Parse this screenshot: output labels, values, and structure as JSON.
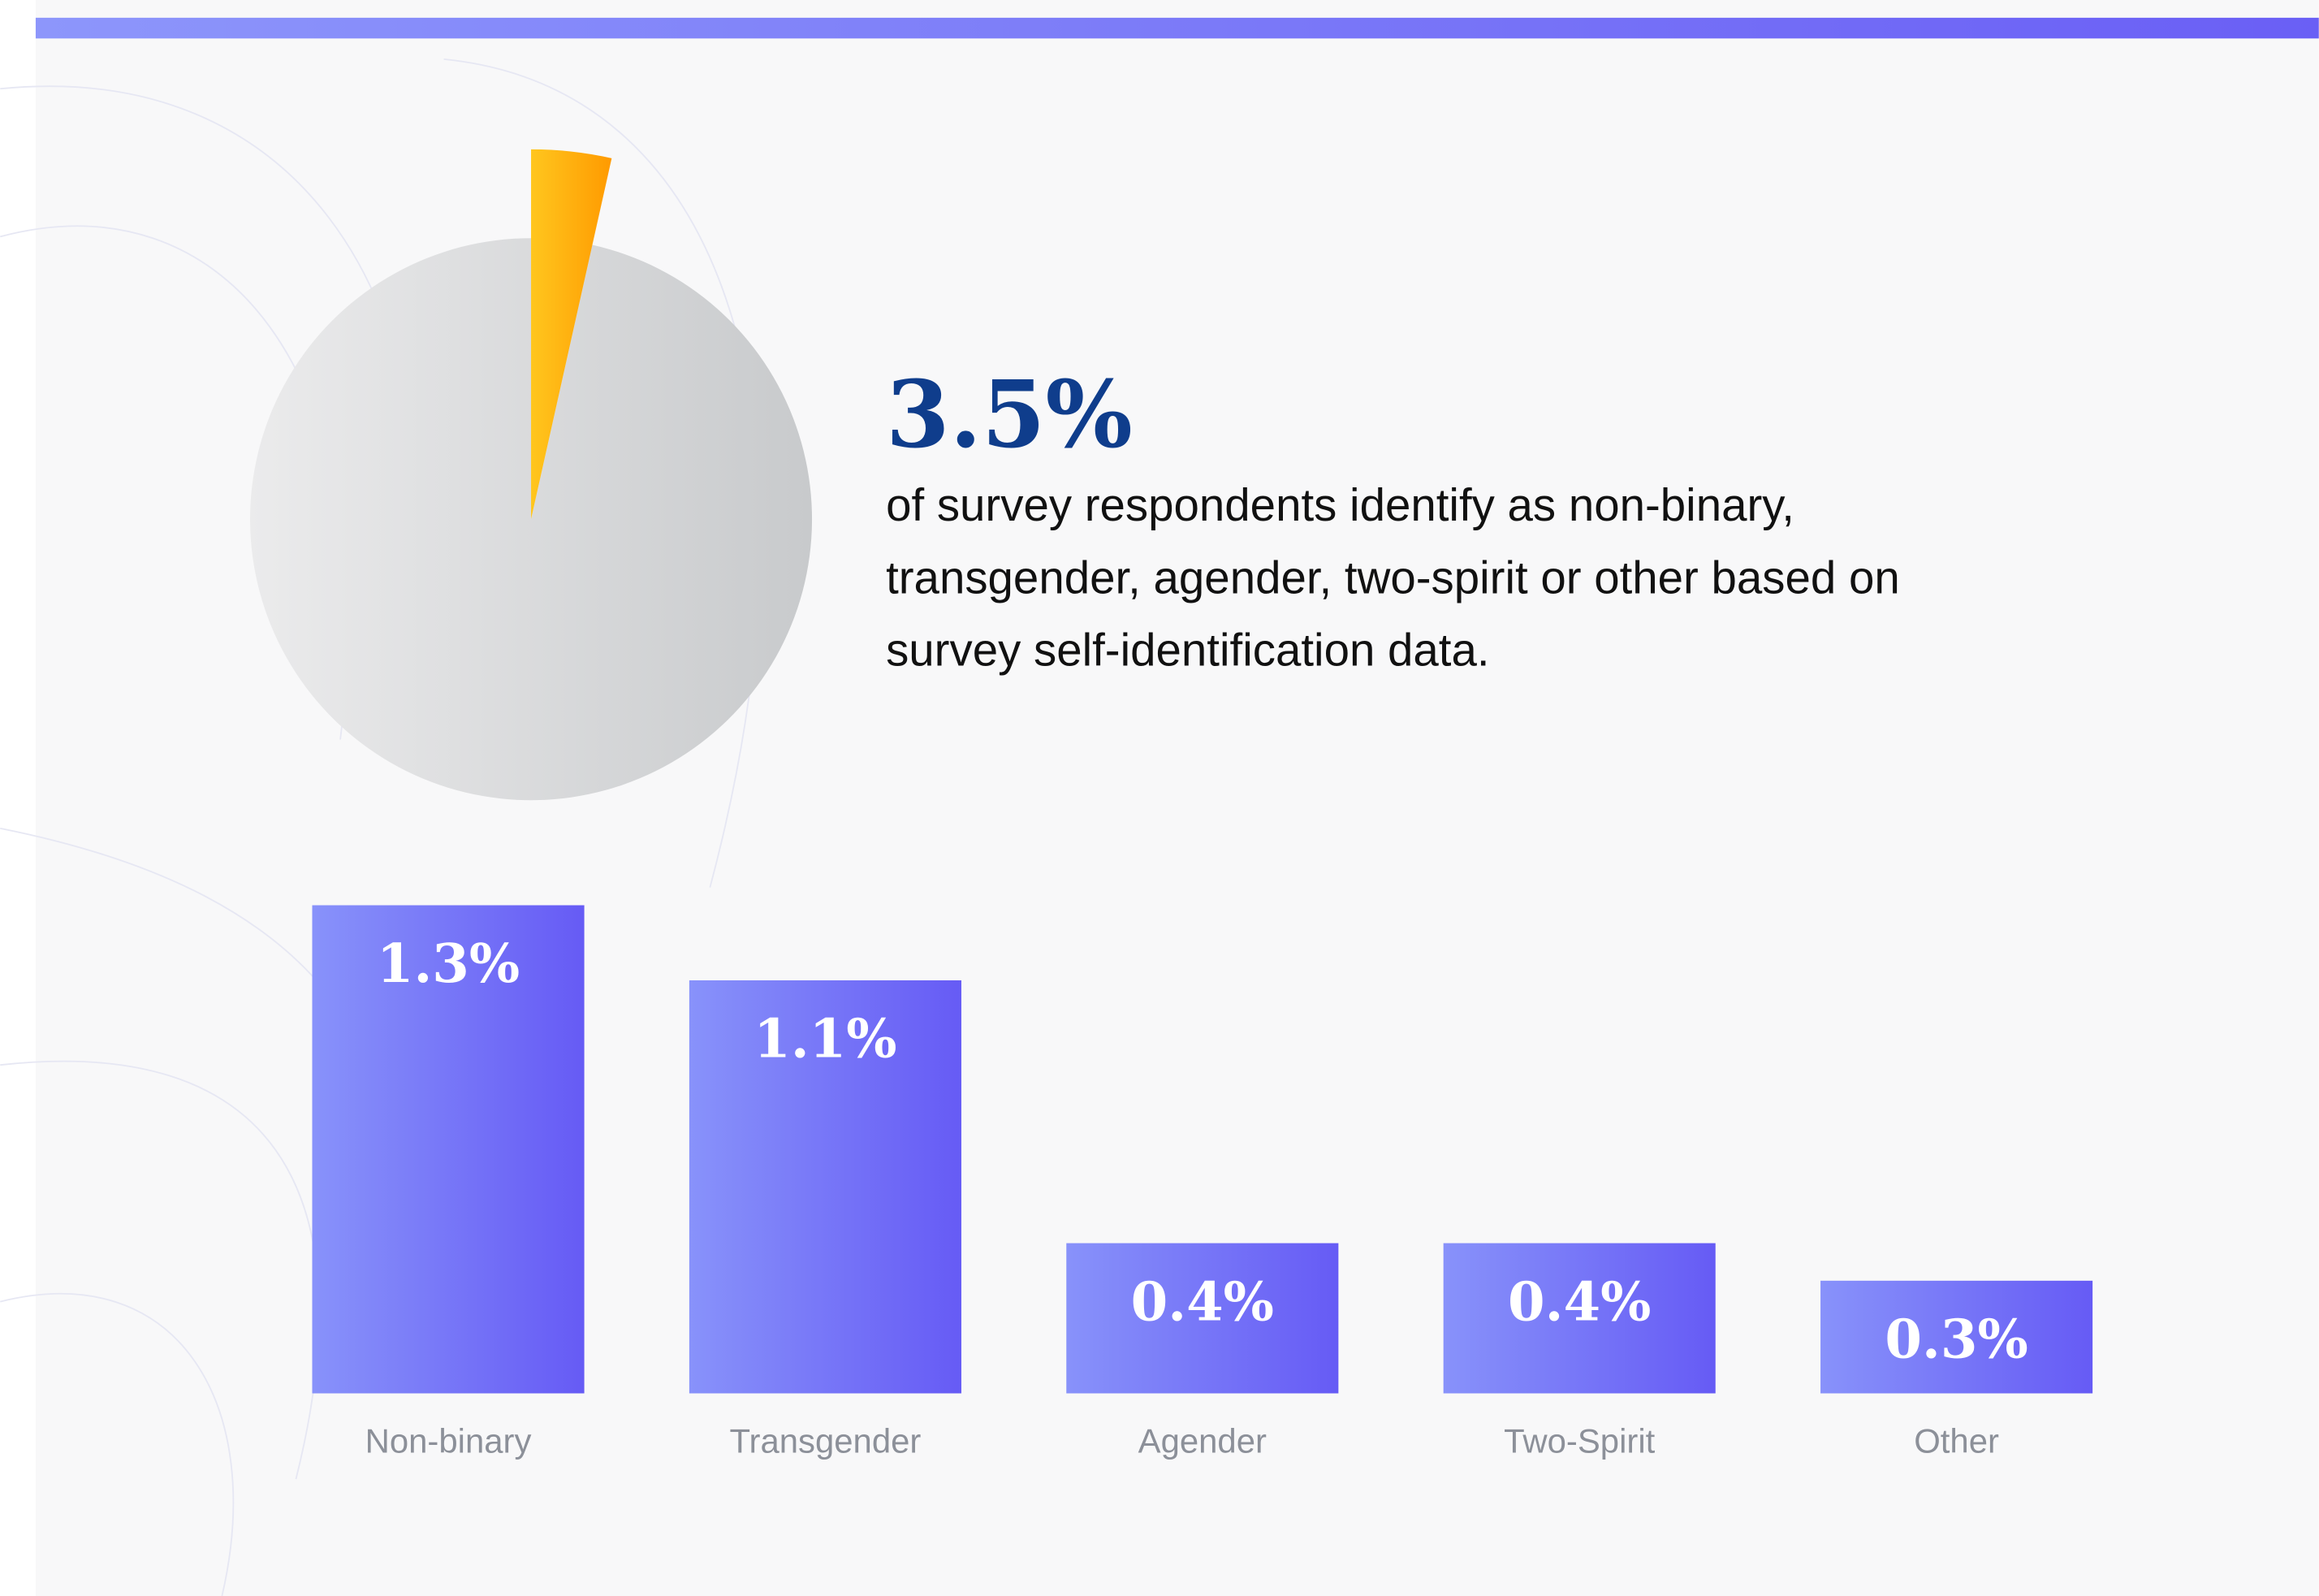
{
  "chart_data": [
    {
      "type": "pie",
      "values": [
        3.5,
        96.5
      ],
      "value_labels": [
        "3.5%",
        null
      ],
      "colors": [
        "#ffb00d",
        "#d8d9db"
      ],
      "annotation": [
        "of survey respondents identify as non-binary,",
        "transgender, agender, two-spirit or other based on",
        "survey self-identification data."
      ]
    },
    {
      "type": "bar",
      "categories": [
        "Non-binary",
        "Transgender",
        "Agender",
        "Two-Spirit",
        "Other"
      ],
      "values": [
        1.3,
        1.1,
        0.4,
        0.4,
        0.3
      ],
      "value_labels": [
        "1.3%",
        "1.1%",
        "0.4%",
        "0.4%",
        "0.3%"
      ],
      "color": "#7473f8"
    }
  ]
}
